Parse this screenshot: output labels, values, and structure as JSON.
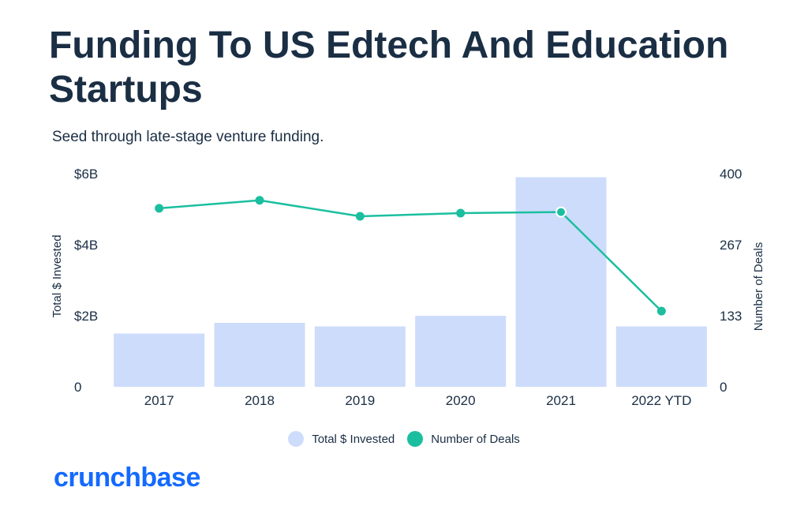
{
  "header": {
    "title": "Funding To US Edtech And Education Startups",
    "subtitle": "Seed through late-stage venture funding."
  },
  "brand": {
    "logo_text": "crunchbase",
    "logo_color": "#146aff"
  },
  "colors": {
    "bar": "#cddcfb",
    "line": "#1bbf9f",
    "text": "#1a2e44"
  },
  "chart_data": {
    "type": "bar",
    "categories": [
      "2017",
      "2018",
      "2019",
      "2020",
      "2021",
      "2022 YTD"
    ],
    "series": [
      {
        "name": "Total $ Invested",
        "type": "bar",
        "axis": "left",
        "values": [
          1.5,
          1.8,
          1.7,
          2.0,
          5.9,
          1.7
        ]
      },
      {
        "name": "Number of Deals",
        "type": "line",
        "axis": "right",
        "values": [
          335,
          350,
          320,
          326,
          328,
          142
        ]
      }
    ],
    "left_axis": {
      "label": "Total $ Invested",
      "ticks": [
        "0",
        "$2B",
        "$4B",
        "$6B"
      ],
      "range": [
        0,
        6
      ]
    },
    "right_axis": {
      "label": "Number of Deals",
      "ticks": [
        "0",
        "133",
        "267",
        "400"
      ],
      "range": [
        0,
        400
      ]
    },
    "legend": {
      "position": "bottom",
      "items": [
        "Total $ Invested",
        "Number of Deals"
      ]
    },
    "highlighted_point": "2021",
    "grid": false
  }
}
